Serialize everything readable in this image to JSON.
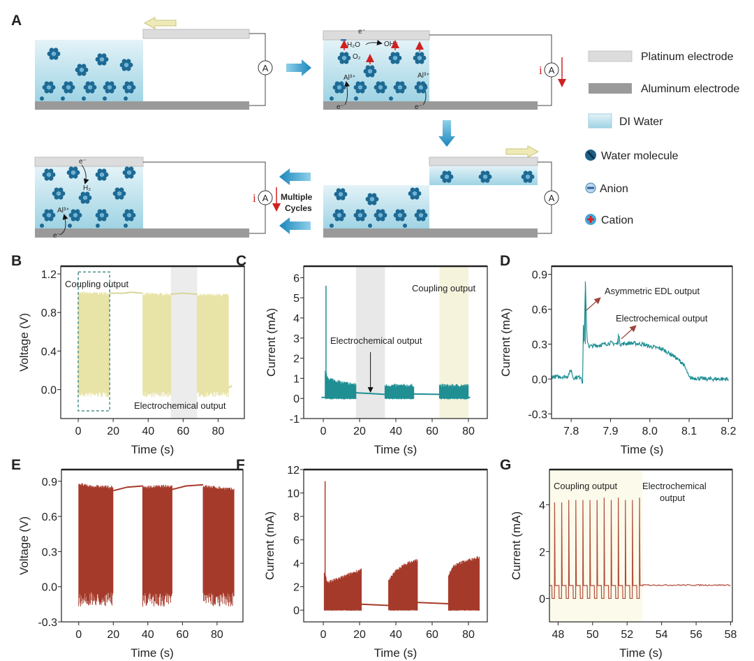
{
  "panel_labels": {
    "A": "A",
    "B": "B",
    "C": "C",
    "D": "D",
    "E": "E",
    "F": "F",
    "G": "G"
  },
  "schematic": {
    "ammeter_label": "A",
    "current_symbol": "i",
    "multiple_cycles": [
      "Multiple",
      "Cycles"
    ],
    "species": {
      "electron": "e⁻",
      "water": "H₂O",
      "hydroxide": "OH⁻",
      "oxygen": "O₂",
      "aluminum_ion": "Al³⁺",
      "hydrogen": "H₂"
    },
    "legend": [
      {
        "label": "Platinum electrode",
        "icon": "platinum-electrode-swatch",
        "color": "#d9d9d9"
      },
      {
        "label": "Aluminum electrode",
        "icon": "aluminum-electrode-swatch",
        "color": "#9a9a9a"
      },
      {
        "label": "DI Water",
        "icon": "di-water-swatch",
        "color": "#bfe3ee"
      },
      {
        "label": "Water molecule",
        "icon": "water-molecule-icon",
        "color": "#1d5f86"
      },
      {
        "label": "Anion",
        "icon": "anion-icon",
        "color": "#3b7fb0"
      },
      {
        "label": "Cation",
        "icon": "cation-icon",
        "color": "#e02020"
      }
    ],
    "colors": {
      "flow_arrow": "#1e8fc0",
      "slide_arrow": "#eeeab8",
      "current_arrow": "#d02020",
      "molecule": "#1d6a94"
    }
  },
  "chart_data": [
    {
      "panel": "B",
      "type": "line",
      "xlabel": "Time (s)",
      "ylabel": "Voltage (V)",
      "xlim": [
        -10,
        95
      ],
      "ylim": [
        -0.3,
        1.28
      ],
      "xticks": [
        0,
        20,
        40,
        60,
        80
      ],
      "xticklabels": [
        "0",
        "20",
        "40",
        "60",
        "80"
      ],
      "yticks": [
        0,
        0.4,
        0.8,
        1.2
      ],
      "yticklabels": [
        "0.0",
        "0.4",
        "0.8",
        "1.2"
      ],
      "color": "#e8e3a6",
      "line_color": "#d6d69a",
      "coupling_segments": [
        {
          "t": [
            0,
            18
          ],
          "envelope": [
            [
              0,
              1.0
            ],
            [
              18,
              1.0
            ]
          ],
          "low": -0.02,
          "low_noise": 0.06
        },
        {
          "t": [
            37,
            53
          ],
          "envelope": [
            [
              37,
              0.99
            ],
            [
              53,
              0.99
            ]
          ],
          "low": -0.02,
          "low_noise": 0.06
        },
        {
          "t": [
            68,
            86
          ],
          "envelope": [
            [
              68,
              0.98
            ],
            [
              86,
              0.98
            ]
          ],
          "low": -0.02,
          "low_noise": 0.06
        }
      ],
      "baseline": [
        [
          18,
          1.0
        ],
        [
          26,
          1.0
        ],
        [
          30,
          1.01
        ],
        [
          37,
          1.0
        ]
      ],
      "baseline2": [
        [
          53,
          0.99
        ],
        [
          60,
          1.0
        ],
        [
          68,
          0.99
        ]
      ],
      "tail": [
        [
          86,
          0.02
        ],
        [
          88,
          0.04
        ]
      ],
      "spikes": [],
      "bands": [
        {
          "t": [
            53,
            68
          ],
          "color": "#ececec"
        }
      ],
      "dashed_box": {
        "t": [
          0,
          18
        ],
        "v": [
          -0.22,
          1.22
        ],
        "color": "#4a8f8a"
      },
      "annotations": [
        "Coupling output",
        "Electrochemical output"
      ]
    },
    {
      "panel": "C",
      "type": "line",
      "xlabel": "Time (s)",
      "ylabel": "Current (mA)",
      "xlim": [
        -10.8,
        90.4
      ],
      "ylim": [
        -1,
        6.57
      ],
      "xticks": [
        0,
        20,
        40,
        60,
        80
      ],
      "xticklabels": [
        "0",
        "20",
        "40",
        "60",
        "80"
      ],
      "yticks": [
        -1,
        0,
        1,
        2,
        3,
        4,
        5,
        6
      ],
      "yticklabels": [
        "-1",
        "0",
        "1",
        "2",
        "3",
        "4",
        "5",
        "6"
      ],
      "color": "#1f8f94",
      "line_color": "#1f8f94",
      "coupling_segments": [
        {
          "t": [
            1,
            18
          ],
          "envelope": [
            [
              1,
              1.3
            ],
            [
              3,
              1.0
            ],
            [
              10,
              0.8
            ],
            [
              18,
              0.7
            ]
          ],
          "low": 0.0,
          "low_noise": 0.05
        },
        {
          "t": [
            34,
            50
          ],
          "envelope": [
            [
              34,
              0.65
            ],
            [
              50,
              0.65
            ]
          ],
          "low": 0.0,
          "low_noise": 0.05
        },
        {
          "t": [
            64,
            80
          ],
          "envelope": [
            [
              64,
              0.65
            ],
            [
              80,
              0.65
            ]
          ],
          "low": 0.0,
          "low_noise": 0.05
        }
      ],
      "baseline": [
        [
          -1,
          0.05
        ],
        [
          1,
          0.05
        ]
      ],
      "baseline2": [
        [
          18,
          0.28
        ],
        [
          26,
          0.24
        ],
        [
          34,
          0.2
        ]
      ],
      "baseline3": [
        [
          50,
          0.22
        ],
        [
          64,
          0.2
        ]
      ],
      "tail": [
        [
          80,
          0.05
        ],
        [
          81,
          0.05
        ]
      ],
      "spikes": [
        {
          "t": 1.5,
          "v": 5.6
        }
      ],
      "bands": [
        {
          "t": [
            18,
            34
          ],
          "color": "#e8e8e8"
        },
        {
          "t": [
            64,
            80
          ],
          "color": "#f6f3dc"
        }
      ],
      "arrow": {
        "t": 26,
        "v": [
          2.3,
          0.35
        ]
      },
      "annotations": [
        "Coupling output",
        "Electrochemical output"
      ]
    },
    {
      "panel": "D",
      "type": "line",
      "xlabel": "Time (s)",
      "ylabel": "Current (mA)",
      "xlim": [
        7.75,
        8.21
      ],
      "ylim": [
        -0.34,
        0.97
      ],
      "xticks": [
        7.8,
        7.9,
        8.0,
        8.1,
        8.2
      ],
      "xticklabels": [
        "7.8",
        "7.9",
        "8.0",
        "8.1",
        "8.2"
      ],
      "yticks": [
        -0.3,
        0,
        0.3,
        0.6,
        0.9
      ],
      "yticklabels": [
        "-0.3",
        "0.0",
        "0.3",
        "0.6",
        "0.9"
      ],
      "color": "#1f8f94",
      "points": [
        [
          7.75,
          0.02
        ],
        [
          7.79,
          0.02
        ],
        [
          7.8,
          0.08
        ],
        [
          7.805,
          0.01
        ],
        [
          7.825,
          0.02
        ],
        [
          7.829,
          -0.03
        ],
        [
          7.831,
          0.45
        ],
        [
          7.833,
          0.3
        ],
        [
          7.836,
          0.84
        ],
        [
          7.84,
          0.35
        ],
        [
          7.845,
          0.28
        ],
        [
          7.87,
          0.29
        ],
        [
          7.9,
          0.31
        ],
        [
          7.918,
          0.3
        ],
        [
          7.92,
          0.39
        ],
        [
          7.925,
          0.3
        ],
        [
          7.95,
          0.31
        ],
        [
          7.98,
          0.3
        ],
        [
          8.0,
          0.28
        ],
        [
          8.03,
          0.26
        ],
        [
          8.06,
          0.2
        ],
        [
          8.085,
          0.13
        ],
        [
          8.095,
          0.06
        ],
        [
          8.1,
          0.01
        ],
        [
          8.15,
          0.0
        ],
        [
          8.2,
          0.0
        ]
      ],
      "annotations": [
        "Asymmetric EDL output",
        "Electrochemical output"
      ],
      "annotation_color": "#a0443a"
    },
    {
      "panel": "E",
      "type": "line",
      "xlabel": "Time (s)",
      "ylabel": "Voltage (V)",
      "xlim": [
        -10,
        95
      ],
      "ylim": [
        -0.3,
        1.0
      ],
      "xticks": [
        0,
        20,
        40,
        60,
        80
      ],
      "xticklabels": [
        "0",
        "20",
        "40",
        "60",
        "80"
      ],
      "yticks": [
        -0.3,
        0,
        0.3,
        0.6,
        0.9
      ],
      "yticklabels": [
        "-0.3",
        "0.0",
        "0.3",
        "0.6",
        "0.9"
      ],
      "color": "#a63a2a",
      "line_color": "#a63a2a",
      "coupling_segments": [
        {
          "t": [
            0,
            20
          ],
          "envelope": [
            [
              0,
              0.88
            ],
            [
              5,
              0.86
            ],
            [
              20,
              0.85
            ]
          ],
          "low": -0.05,
          "low_noise": 0.12
        },
        {
          "t": [
            37,
            54
          ],
          "envelope": [
            [
              37,
              0.85
            ],
            [
              54,
              0.86
            ]
          ],
          "low": -0.05,
          "low_noise": 0.12
        },
        {
          "t": [
            72,
            90
          ],
          "envelope": [
            [
              72,
              0.86
            ],
            [
              90,
              0.83
            ]
          ],
          "low": -0.05,
          "low_noise": 0.12
        }
      ],
      "baseline": [
        [
          20,
          0.82
        ],
        [
          28,
          0.85
        ],
        [
          37,
          0.86
        ]
      ],
      "baseline2": [
        [
          54,
          0.83
        ],
        [
          62,
          0.86
        ],
        [
          72,
          0.87
        ]
      ],
      "spikes": [],
      "annotations": []
    },
    {
      "panel": "F",
      "type": "line",
      "xlabel": "Time (s)",
      "ylabel": "Current (mA)",
      "xlim": [
        -10.8,
        90.4
      ],
      "ylim": [
        -1,
        12
      ],
      "xticks": [
        0,
        20,
        40,
        60,
        80
      ],
      "xticklabels": [
        "0",
        "20",
        "40",
        "60",
        "80"
      ],
      "yticks": [
        0,
        2,
        4,
        6,
        8,
        10,
        12
      ],
      "yticklabels": [
        "0",
        "2",
        "4",
        "6",
        "8",
        "10",
        "12"
      ],
      "color": "#a63a2a",
      "line_color": "#a63a2a",
      "coupling_segments": [
        {
          "t": [
            0.5,
            21
          ],
          "envelope": [
            [
              0.5,
              3.3
            ],
            [
              2,
              2.5
            ],
            [
              3,
              2.4
            ],
            [
              10,
              2.8
            ],
            [
              21,
              3.5
            ]
          ],
          "low": 0.0,
          "low_noise": 0.05
        },
        {
          "t": [
            36,
            52
          ],
          "envelope": [
            [
              36,
              2.5
            ],
            [
              40,
              3.4
            ],
            [
              46,
              4.0
            ],
            [
              52,
              4.3
            ]
          ],
          "low": 0.0,
          "low_noise": 0.05
        },
        {
          "t": [
            69,
            86
          ],
          "envelope": [
            [
              69,
              3.0
            ],
            [
              72,
              3.8
            ],
            [
              78,
              4.2
            ],
            [
              86,
              4.5
            ]
          ],
          "low": 0.0,
          "low_noise": 0.05
        }
      ],
      "baseline": [
        [
          21,
          0.5
        ],
        [
          36,
          0.4
        ]
      ],
      "baseline2": [
        [
          52,
          0.65
        ],
        [
          69,
          0.55
        ]
      ],
      "spikes": [
        {
          "t": 1.0,
          "v": 11.0
        }
      ],
      "annotations": []
    },
    {
      "panel": "G",
      "type": "line",
      "xlabel": "Time (s)",
      "ylabel": "Current (mA)",
      "xlim": [
        47.5,
        58.1
      ],
      "ylim": [
        -1,
        5.5
      ],
      "xticks": [
        48,
        50,
        52,
        54,
        56,
        58
      ],
      "xticklabels": [
        "48",
        "50",
        "52",
        "54",
        "56",
        "58"
      ],
      "yticks": [
        0,
        2,
        4
      ],
      "yticklabels": [
        "0",
        "2",
        "4"
      ],
      "color": "#b04a3a",
      "pulses": {
        "t_start": 47.8,
        "period": 0.41,
        "peaks": [
          4.1,
          4.1,
          4.2,
          4.2,
          4.2,
          4.2,
          4.2,
          4.3,
          4.2,
          4.3,
          4.2,
          4.2,
          4.3
        ],
        "plateau": 0.55,
        "low": 0.0
      },
      "steady": {
        "t": [
          52.9,
          58.0
        ],
        "v": 0.57
      },
      "bands": [
        {
          "t": [
            47.5,
            52.9
          ],
          "color": "#fcfaea"
        }
      ],
      "annotations": [
        "Coupling output",
        "Electrochemical",
        "output"
      ]
    }
  ]
}
